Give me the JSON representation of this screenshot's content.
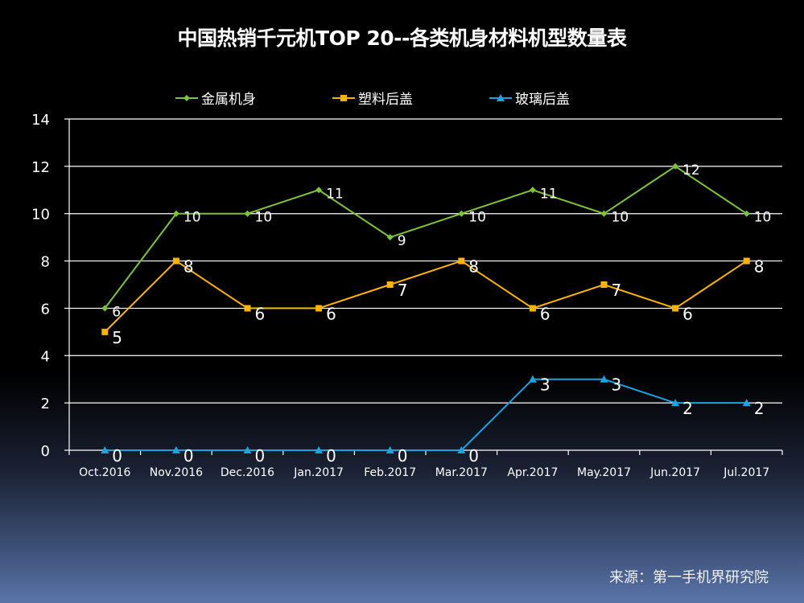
{
  "chart_data": {
    "type": "line",
    "title": "中国热销千元机TOP 20--各类机身材料机型数量表",
    "categories": [
      "Oct.2016",
      "Nov.2016",
      "Dec.2016",
      "Jan.2017",
      "Feb.2017",
      "Mar.2017",
      "Apr.2017",
      "May.2017",
      "Jun.2017",
      "Jul.2017"
    ],
    "series": [
      {
        "name": "金属机身",
        "color": "#7dc33b",
        "marker": "diamond",
        "values": [
          6,
          10,
          10,
          11,
          9,
          10,
          11,
          10,
          12,
          10
        ]
      },
      {
        "name": "塑料后盖",
        "color": "#ffb400",
        "marker": "square",
        "values": [
          5,
          8,
          6,
          6,
          7,
          8,
          6,
          7,
          6,
          8
        ]
      },
      {
        "name": "玻璃后盖",
        "color": "#1ca3e0",
        "marker": "triangle",
        "values": [
          0,
          0,
          0,
          0,
          0,
          0,
          3,
          3,
          2,
          2
        ]
      }
    ],
    "ylim": [
      0,
      14
    ],
    "yticks": [
      0,
      2,
      4,
      6,
      8,
      10,
      12,
      14
    ],
    "grid": true,
    "legend": "top",
    "xlabel": "",
    "ylabel": ""
  },
  "source": "来源：第一手机界研究院"
}
